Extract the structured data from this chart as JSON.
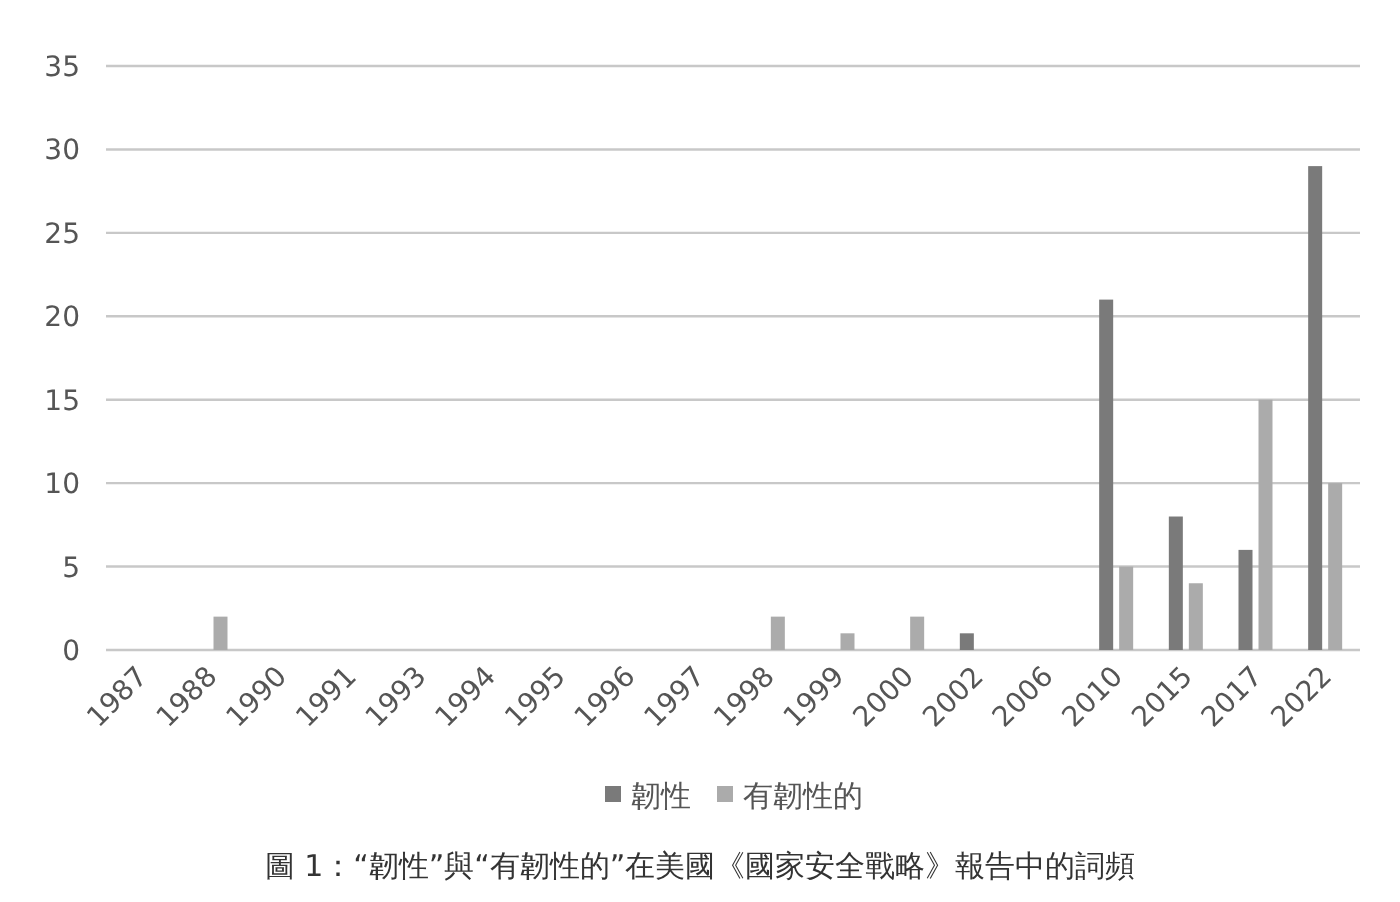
{
  "chart_data": {
    "type": "bar",
    "categories": [
      "1987",
      "1988",
      "1990",
      "1991",
      "1993",
      "1994",
      "1995",
      "1996",
      "1997",
      "1998",
      "1999",
      "2000",
      "2002",
      "2006",
      "2010",
      "2015",
      "2017",
      "2022"
    ],
    "series": [
      {
        "name": "韌性",
        "color": "#7a7a7a",
        "values": [
          0,
          0,
          0,
          0,
          0,
          0,
          0,
          0,
          0,
          0,
          0,
          0,
          1,
          0,
          21,
          8,
          6,
          29
        ]
      },
      {
        "name": "有韌性的",
        "color": "#ababab",
        "values": [
          0,
          2,
          0,
          0,
          0,
          0,
          0,
          0,
          0,
          2,
          1,
          2,
          0,
          0,
          5,
          4,
          15,
          10
        ]
      }
    ],
    "ylim": [
      0,
      35
    ],
    "yticks": [
      0,
      5,
      10,
      15,
      20,
      25,
      30,
      35
    ],
    "grid": "y",
    "legend": "bottom",
    "annotations": [
      "圖 1：“韌性”與“有韌性的”在美國《國家安全戰略》報告中的詞頻"
    ]
  }
}
